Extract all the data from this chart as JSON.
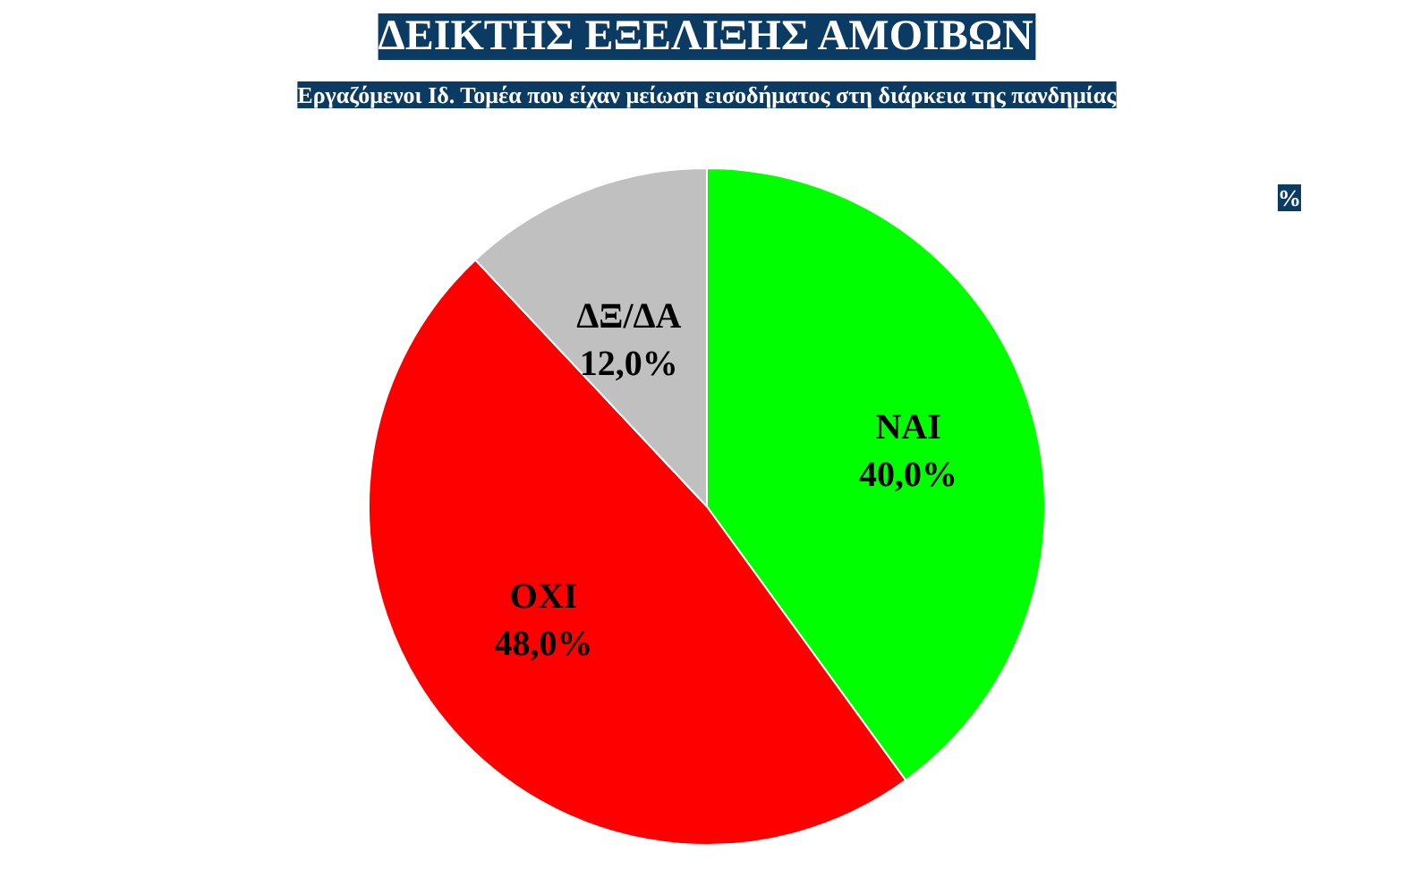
{
  "chart_data": {
    "type": "pie",
    "title": "ΔΕΙΚΤΗΣ ΕΞΕΛΙΞΗΣ ΑΜΟΙΒΩΝ",
    "subtitle": "Εργαζόμενοι Ιδ. Τομέα που είχαν μείωση εισοδήματος στη διάρκεια της πανδημίας",
    "categories": [
      "ΝΑΙ",
      "ΟΧΙ",
      "ΔΞ/ΔΑ"
    ],
    "values": [
      40.0,
      48.0,
      12.0
    ],
    "value_labels": [
      "40,0%",
      "48,0%",
      "12,0%"
    ],
    "colors": [
      "#00ff00",
      "#ff0000",
      "#c0c0c0"
    ],
    "annotations": [
      "%"
    ]
  }
}
